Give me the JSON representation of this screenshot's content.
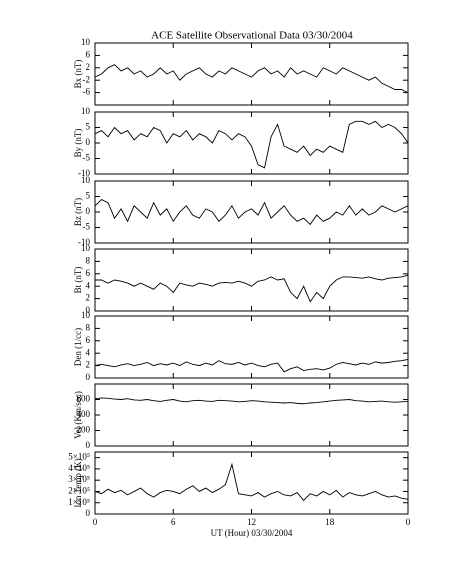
{
  "chart_data": [
    {
      "type": "line",
      "title": "ACE Satellite Observational Data   03/30/2004",
      "ylabel": "Bx (nT)",
      "ylim": [
        -10,
        10
      ],
      "yticks": [
        -6,
        -2,
        2,
        6,
        10
      ],
      "xlim": [
        0,
        24
      ],
      "x": [
        0,
        0.5,
        1,
        1.5,
        2,
        2.5,
        3,
        3.5,
        4,
        4.5,
        5,
        5.5,
        6,
        6.5,
        7,
        7.5,
        8,
        8.5,
        9,
        9.5,
        10,
        10.5,
        11,
        11.5,
        12,
        12.5,
        13,
        13.5,
        14,
        14.5,
        15,
        15.5,
        16,
        16.5,
        17,
        17.5,
        18,
        18.5,
        19,
        19.5,
        20,
        20.5,
        21,
        21.5,
        22,
        22.5,
        23,
        23.5,
        24
      ],
      "series": [
        {
          "color": "#000000",
          "values": [
            -1,
            0,
            2,
            3,
            1,
            2,
            0,
            1,
            -1,
            0,
            2,
            0,
            1,
            -2,
            0,
            1,
            2,
            0,
            -1,
            1,
            0,
            2,
            1,
            0,
            -1,
            1,
            2,
            0,
            1,
            -1,
            2,
            0,
            1,
            0,
            -1,
            2,
            1,
            0,
            2,
            1,
            0,
            -1,
            -2,
            -1,
            -3,
            -4,
            -5,
            -5,
            -6
          ]
        }
      ]
    },
    {
      "type": "line",
      "ylabel": "By (nT)",
      "ylim": [
        -10,
        10
      ],
      "yticks": [
        -10,
        -5,
        0,
        5,
        10
      ],
      "xlim": [
        0,
        24
      ],
      "x": [
        0,
        0.5,
        1,
        1.5,
        2,
        2.5,
        3,
        3.5,
        4,
        4.5,
        5,
        5.5,
        6,
        6.5,
        7,
        7.5,
        8,
        8.5,
        9,
        9.5,
        10,
        10.5,
        11,
        11.5,
        12,
        12.5,
        13,
        13.5,
        14,
        14.5,
        15,
        15.5,
        16,
        16.5,
        17,
        17.5,
        18,
        18.5,
        19,
        19.5,
        20,
        20.5,
        21,
        21.5,
        22,
        22.5,
        23,
        23.5,
        24
      ],
      "series": [
        {
          "color": "#000000",
          "values": [
            3,
            4,
            2,
            5,
            3,
            4,
            1,
            3,
            2,
            5,
            4,
            0,
            3,
            2,
            4,
            1,
            3,
            2,
            0,
            4,
            3,
            1,
            3,
            2,
            -1,
            -7,
            -8,
            2,
            6,
            -1,
            -2,
            -3,
            -1,
            -4,
            -2,
            -3,
            -1,
            -2,
            -3,
            6,
            7,
            7,
            6,
            7,
            5,
            6,
            5,
            3,
            0
          ]
        }
      ]
    },
    {
      "type": "line",
      "ylabel": "Bz (nT)",
      "ylim": [
        -10,
        10
      ],
      "yticks": [
        -10,
        -5,
        0,
        5,
        10
      ],
      "xlim": [
        0,
        24
      ],
      "x": [
        0,
        0.5,
        1,
        1.5,
        2,
        2.5,
        3,
        3.5,
        4,
        4.5,
        5,
        5.5,
        6,
        6.5,
        7,
        7.5,
        8,
        8.5,
        9,
        9.5,
        10,
        10.5,
        11,
        11.5,
        12,
        12.5,
        13,
        13.5,
        14,
        14.5,
        15,
        15.5,
        16,
        16.5,
        17,
        17.5,
        18,
        18.5,
        19,
        19.5,
        20,
        20.5,
        21,
        21.5,
        22,
        22.5,
        23,
        23.5,
        24
      ],
      "series": [
        {
          "color": "#000000",
          "values": [
            2,
            4,
            3,
            -2,
            1,
            -3,
            2,
            0,
            -2,
            3,
            -1,
            1,
            -3,
            0,
            2,
            -1,
            -2,
            1,
            0,
            -3,
            -1,
            2,
            -2,
            0,
            1,
            -1,
            3,
            -2,
            0,
            2,
            -1,
            -3,
            -2,
            -4,
            -1,
            -3,
            -2,
            0,
            -1,
            2,
            -1,
            1,
            -1,
            0,
            2,
            1,
            0,
            1,
            2
          ]
        }
      ]
    },
    {
      "type": "line",
      "ylabel": "Bt (nT)",
      "ylim": [
        0,
        10
      ],
      "yticks": [
        0,
        2,
        4,
        6,
        8,
        10
      ],
      "xlim": [
        0,
        24
      ],
      "x": [
        0,
        0.5,
        1,
        1.5,
        2,
        2.5,
        3,
        3.5,
        4,
        4.5,
        5,
        5.5,
        6,
        6.5,
        7,
        7.5,
        8,
        8.5,
        9,
        9.5,
        10,
        10.5,
        11,
        11.5,
        12,
        12.5,
        13,
        13.5,
        14,
        14.5,
        15,
        15.5,
        16,
        16.5,
        17,
        17.5,
        18,
        18.5,
        19,
        19.5,
        20,
        20.5,
        21,
        21.5,
        22,
        22.5,
        23,
        23.5,
        24
      ],
      "series": [
        {
          "color": "#000000",
          "values": [
            5,
            5,
            4.5,
            5,
            4.8,
            4.5,
            4,
            4.5,
            4,
            3.5,
            4.5,
            4,
            3,
            4.5,
            4.2,
            4,
            4.5,
            4.3,
            4,
            4.5,
            4.6,
            4.5,
            4.8,
            4.5,
            4,
            4.8,
            5,
            5.5,
            5,
            5.2,
            3,
            2,
            4,
            1.5,
            3,
            2,
            4,
            5,
            5.5,
            5.5,
            5.4,
            5.3,
            5.5,
            5.2,
            5,
            5.3,
            5.4,
            5.5,
            5.8
          ]
        }
      ]
    },
    {
      "type": "line",
      "ylabel": "Den (1/cc)",
      "ylim": [
        0,
        10
      ],
      "yticks": [
        0,
        2,
        4,
        6,
        8,
        10
      ],
      "xlim": [
        0,
        24
      ],
      "x": [
        0,
        0.5,
        1,
        1.5,
        2,
        2.5,
        3,
        3.5,
        4,
        4.5,
        5,
        5.5,
        6,
        6.5,
        7,
        7.5,
        8,
        8.5,
        9,
        9.5,
        10,
        10.5,
        11,
        11.5,
        12,
        12.5,
        13,
        13.5,
        14,
        14.5,
        15,
        15.5,
        16,
        16.5,
        17,
        17.5,
        18,
        18.5,
        19,
        19.5,
        20,
        20.5,
        21,
        21.5,
        22,
        22.5,
        23,
        23.5,
        24
      ],
      "series": [
        {
          "color": "#000000",
          "values": [
            2,
            2.2,
            2,
            1.8,
            2.1,
            2.3,
            2,
            2.2,
            2.5,
            2,
            2.3,
            2.1,
            2.4,
            2,
            2.6,
            2.2,
            2,
            2.4,
            2.1,
            2.8,
            2.3,
            2.2,
            2.5,
            2.1,
            2.4,
            2,
            1.8,
            2.2,
            2.4,
            1,
            1.5,
            1.8,
            1.2,
            1.4,
            1.5,
            1.3,
            1.6,
            2.2,
            2.5,
            2.3,
            2.1,
            2.4,
            2.2,
            2.6,
            2.4,
            2.5,
            2.7,
            2.8,
            3
          ]
        }
      ]
    },
    {
      "type": "line",
      "ylabel": "Vel (Km/sec)",
      "ylim": [
        0,
        800
      ],
      "yticks": [
        0,
        200,
        400,
        600
      ],
      "xlim": [
        0,
        24
      ],
      "x": [
        0,
        0.5,
        1,
        1.5,
        2,
        2.5,
        3,
        3.5,
        4,
        4.5,
        5,
        5.5,
        6,
        6.5,
        7,
        7.5,
        8,
        8.5,
        9,
        9.5,
        10,
        10.5,
        11,
        11.5,
        12,
        12.5,
        13,
        13.5,
        14,
        14.5,
        15,
        15.5,
        16,
        16.5,
        17,
        17.5,
        18,
        18.5,
        19,
        19.5,
        20,
        20.5,
        21,
        21.5,
        22,
        22.5,
        23,
        23.5,
        24
      ],
      "series": [
        {
          "color": "#000000",
          "values": [
            610,
            620,
            615,
            605,
            600,
            610,
            595,
            590,
            600,
            585,
            575,
            590,
            600,
            580,
            570,
            585,
            590,
            580,
            575,
            590,
            585,
            580,
            570,
            575,
            585,
            580,
            570,
            565,
            560,
            555,
            560,
            550,
            545,
            555,
            560,
            570,
            580,
            590,
            595,
            600,
            585,
            580,
            570,
            575,
            580,
            570,
            565,
            570,
            575
          ]
        }
      ]
    },
    {
      "type": "line",
      "ylabel": "Ion Temp (K)",
      "xlabel": "UT (Hour)  03/30/2004",
      "ylim": [
        0,
        550000
      ],
      "yticks": [
        {
          "value": 0,
          "label": "0"
        },
        {
          "value": 100000,
          "label": "1×10⁵"
        },
        {
          "value": 200000,
          "label": "2×10⁵"
        },
        {
          "value": 300000,
          "label": "3×10⁵"
        },
        {
          "value": 400000,
          "label": "4×10⁵"
        },
        {
          "value": 500000,
          "label": "5×10⁵"
        }
      ],
      "xlim": [
        0,
        24
      ],
      "xticks": [
        0,
        6,
        12,
        18,
        {
          "value": 24,
          "label": "0"
        }
      ],
      "x": [
        0,
        0.5,
        1,
        1.5,
        2,
        2.5,
        3,
        3.5,
        4,
        4.5,
        5,
        5.5,
        6,
        6.5,
        7,
        7.5,
        8,
        8.5,
        9,
        9.5,
        10,
        10.5,
        11,
        11.5,
        12,
        12.5,
        13,
        13.5,
        14,
        14.5,
        15,
        15.5,
        16,
        16.5,
        17,
        17.5,
        18,
        18.5,
        19,
        19.5,
        20,
        20.5,
        21,
        21.5,
        22,
        22.5,
        23,
        23.5,
        24
      ],
      "series": [
        {
          "color": "#000000",
          "values": [
            200000,
            180000,
            220000,
            190000,
            210000,
            170000,
            200000,
            230000,
            180000,
            150000,
            190000,
            210000,
            200000,
            180000,
            220000,
            250000,
            200000,
            230000,
            190000,
            220000,
            260000,
            440000,
            180000,
            170000,
            160000,
            190000,
            150000,
            180000,
            200000,
            170000,
            160000,
            190000,
            120000,
            180000,
            160000,
            200000,
            170000,
            210000,
            150000,
            190000,
            170000,
            160000,
            180000,
            200000,
            170000,
            150000,
            160000,
            140000,
            130000
          ]
        }
      ]
    }
  ]
}
